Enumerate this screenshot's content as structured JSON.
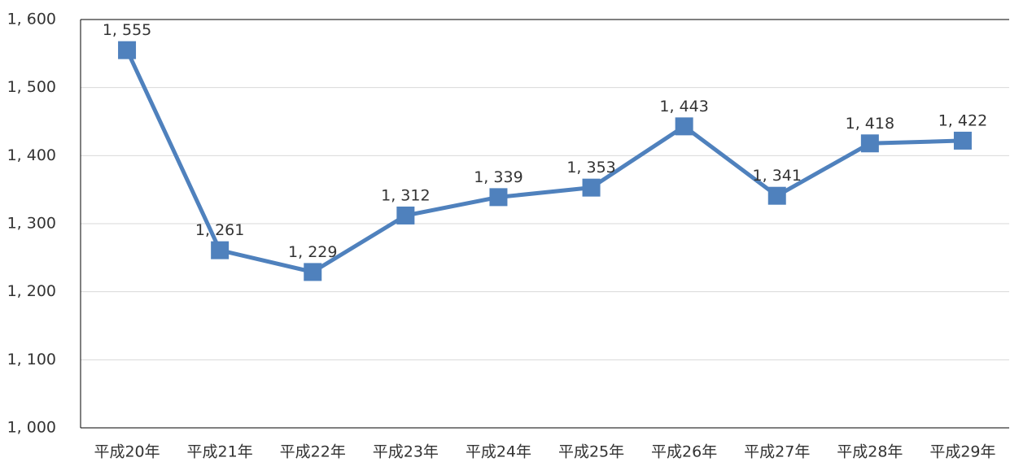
{
  "chart_data": {
    "type": "line",
    "categories": [
      "平成20年",
      "平成21年",
      "平成22年",
      "平成23年",
      "平成24年",
      "平成25年",
      "平成26年",
      "平成27年",
      "平成28年",
      "平成29年"
    ],
    "series": [
      {
        "color": "#4f81bd",
        "values": [
          1555,
          1261,
          1229,
          1312,
          1339,
          1353,
          1443,
          1341,
          1418,
          1422
        ],
        "value_labels": [
          "1, 555",
          "1, 261",
          "1, 229",
          "1, 312",
          "1, 339",
          "1, 353",
          "1, 443",
          "1, 341",
          "1, 418",
          "1, 422"
        ]
      }
    ],
    "ylim": [
      1000,
      1600
    ],
    "yticks": [
      {
        "value": 1000,
        "label": "1, 000"
      },
      {
        "value": 1100,
        "label": "1, 100"
      },
      {
        "value": 1200,
        "label": "1, 200"
      },
      {
        "value": 1300,
        "label": "1, 300"
      },
      {
        "value": 1400,
        "label": "1, 400"
      },
      {
        "value": 1500,
        "label": "1, 500"
      },
      {
        "value": 1600,
        "label": "1, 600"
      }
    ],
    "grid": true
  }
}
